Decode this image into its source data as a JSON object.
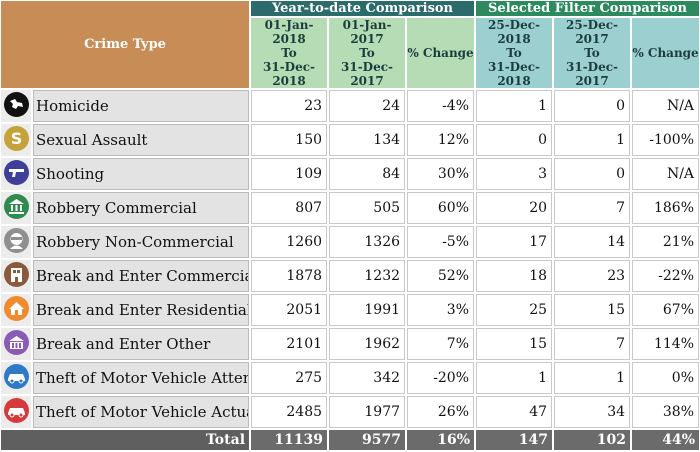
{
  "header": {
    "crime_type": "Crime Type",
    "ytd_group": "Year-to-date Comparison",
    "sel_group": "Selected Filter Comparison",
    "ytd_current": [
      "01-Jan-2018",
      "To",
      "31-Dec-2018"
    ],
    "ytd_previous": [
      "01-Jan-2017",
      "To",
      "31-Dec-2017"
    ],
    "ytd_change": "% Change",
    "sel_current": [
      "25-Dec-2018",
      "To",
      "31-Dec-2018"
    ],
    "sel_previous": [
      "25-Dec-2017",
      "To",
      "31-Dec-2017"
    ],
    "sel_change": "% Change"
  },
  "rows": [
    {
      "icon": "homicide-icon",
      "icon_color": "#111111",
      "name": "Homicide",
      "ytd_cur": "23",
      "ytd_prev": "24",
      "ytd_chg": "-4%",
      "sel_cur": "1",
      "sel_prev": "0",
      "sel_chg": "N/A"
    },
    {
      "icon": "sexual-assault-icon",
      "icon_color": "#c6a23a",
      "name": "Sexual Assault",
      "ytd_cur": "150",
      "ytd_prev": "134",
      "ytd_chg": "12%",
      "sel_cur": "0",
      "sel_prev": "1",
      "sel_chg": "-100%"
    },
    {
      "icon": "shooting-icon",
      "icon_color": "#3f3f9a",
      "name": "Shooting",
      "ytd_cur": "109",
      "ytd_prev": "84",
      "ytd_chg": "30%",
      "sel_cur": "3",
      "sel_prev": "0",
      "sel_chg": "N/A"
    },
    {
      "icon": "robbery-commercial-icon",
      "icon_color": "#2f8a4e",
      "name": "Robbery Commercial",
      "ytd_cur": "807",
      "ytd_prev": "505",
      "ytd_chg": "60%",
      "sel_cur": "20",
      "sel_prev": "7",
      "sel_chg": "186%"
    },
    {
      "icon": "robbery-non-commercial-icon",
      "icon_color": "#8f8f8f",
      "name": "Robbery Non-Commercial",
      "ytd_cur": "1260",
      "ytd_prev": "1326",
      "ytd_chg": "-5%",
      "sel_cur": "17",
      "sel_prev": "14",
      "sel_chg": "21%"
    },
    {
      "icon": "break-enter-commercial-icon",
      "icon_color": "#8a5a3c",
      "name": "Break and Enter Commercial",
      "ytd_cur": "1878",
      "ytd_prev": "1232",
      "ytd_chg": "52%",
      "sel_cur": "18",
      "sel_prev": "23",
      "sel_chg": "-22%"
    },
    {
      "icon": "break-enter-residential-icon",
      "icon_color": "#f08a2e",
      "name": "Break and Enter Residential",
      "ytd_cur": "2051",
      "ytd_prev": "1991",
      "ytd_chg": "3%",
      "sel_cur": "25",
      "sel_prev": "15",
      "sel_chg": "67%"
    },
    {
      "icon": "break-enter-other-icon",
      "icon_color": "#8a5bb5",
      "name": "Break and Enter Other",
      "ytd_cur": "2101",
      "ytd_prev": "1962",
      "ytd_chg": "7%",
      "sel_cur": "15",
      "sel_prev": "7",
      "sel_chg": "114%"
    },
    {
      "icon": "theft-vehicle-attempt-icon",
      "icon_color": "#2f7ac6",
      "name": "Theft of Motor Vehicle Attempt",
      "ytd_cur": "275",
      "ytd_prev": "342",
      "ytd_chg": "-20%",
      "sel_cur": "1",
      "sel_prev": "1",
      "sel_chg": "0%"
    },
    {
      "icon": "theft-vehicle-actual-icon",
      "icon_color": "#d63a3a",
      "name": "Theft of Motor Vehicle Actual",
      "ytd_cur": "2485",
      "ytd_prev": "1977",
      "ytd_chg": "26%",
      "sel_cur": "47",
      "sel_prev": "34",
      "sel_chg": "38%"
    }
  ],
  "total": {
    "label": "Total",
    "ytd_cur": "11139",
    "ytd_prev": "9577",
    "ytd_chg": "16%",
    "sel_cur": "147",
    "sel_prev": "102",
    "sel_chg": "44%"
  }
}
